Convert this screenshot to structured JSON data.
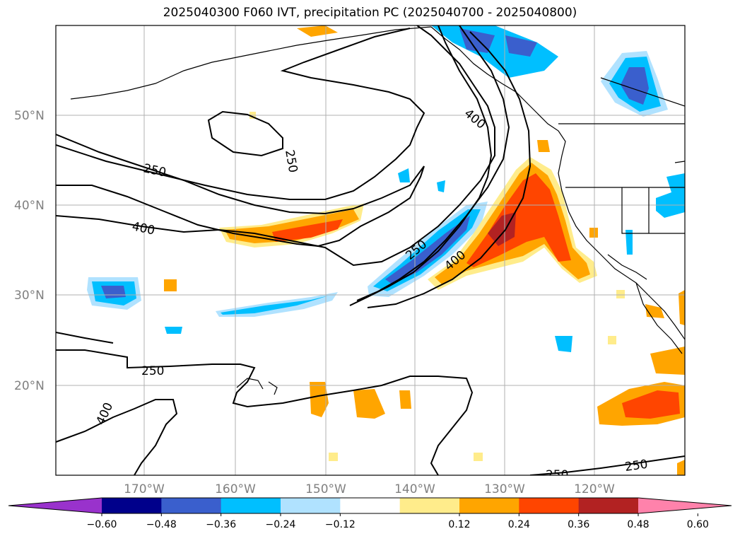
{
  "title": "2025040300 F060 IVT, precipitation PC (2025040700 - 2025040800)",
  "lat_labels": [
    "50°N",
    "40°N",
    "30°N",
    "20°N"
  ],
  "lon_labels": [
    "170°W",
    "160°W",
    "150°W",
    "140°W",
    "130°W",
    "120°W"
  ],
  "colorbar": {
    "ticks": [
      "−0.60",
      "−0.48",
      "−0.36",
      "−0.24",
      "−0.12",
      "0.12",
      "0.24",
      "0.36",
      "0.48",
      "0.60"
    ],
    "colors": [
      "#9932cc",
      "#00008b",
      "#3a5fcd",
      "#00bfff",
      "#b0e2ff",
      "#ffffff",
      "#ffec8b",
      "#ffa500",
      "#ff4500",
      "#b22222",
      "#ff82ab"
    ]
  },
  "contour_labels": [
    "250",
    "250",
    "400",
    "400",
    "250",
    "400",
    "250",
    "400",
    "250",
    "250"
  ],
  "colors": {
    "contour": "#000000",
    "grid": "#b0b0b0",
    "coast": "#000000"
  }
}
